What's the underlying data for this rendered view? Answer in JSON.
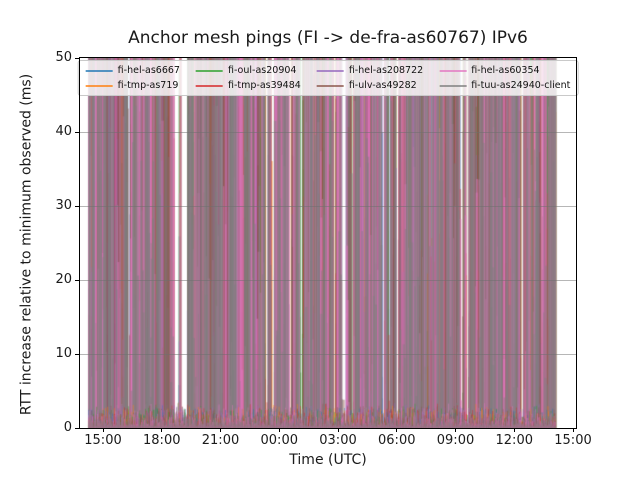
{
  "chart_data": {
    "type": "line",
    "title": "Anchor mesh pings (FI -> de-fra-as60767) IPv6",
    "xlabel": "Time (UTC)",
    "ylabel": "RTT increase relative to minimum observed (ms)",
    "ylim": [
      0,
      50
    ],
    "x_tick_labels": [
      "15:00",
      "18:00",
      "21:00",
      "00:00",
      "03:00",
      "06:00",
      "09:00",
      "12:00",
      "15:00"
    ],
    "x_tick_interval_hours": 3,
    "y_tick_labels": [
      "0",
      "10",
      "20",
      "30",
      "40",
      "50"
    ],
    "grid": "horizontal-gridlines-on",
    "legend_position": "upper center, 4 columns, 2 rows",
    "series": [
      {
        "name": "fi-hel-as6667",
        "color": "#1f77b4"
      },
      {
        "name": "fi-tmp-as719",
        "color": "#ff7f0e"
      },
      {
        "name": "fi-oul-as20904",
        "color": "#2ca02c"
      },
      {
        "name": "fi-tmp-as39484",
        "color": "#d62728"
      },
      {
        "name": "fi-hel-as208722",
        "color": "#9467bd"
      },
      {
        "name": "fi-ulv-as49282",
        "color": "#8c564b"
      },
      {
        "name": "fi-hel-as60354",
        "color": "#e377c2"
      },
      {
        "name": "fi-tuu-as24940-client",
        "color": "#7f7f7f"
      }
    ],
    "values_note": "Dense noisy RTT time series spanning ~24 h (approx 14:00 UTC to 14:00 UTC next day). Baseline sits at 0-3 ms for all eight probes, with near-continuous spikes that exceed the 50 ms axis limit, rendering as a solid multicolored wall of semi-transparent vertical lines.",
    "render": {
      "seed": 1337,
      "spikes_per_series": 560,
      "full_height_probability": 0.58,
      "line_alpha": 0.45,
      "baseline_max_ms": 3.2,
      "gap_slivers": 22,
      "data_x_fraction_start": 0.016,
      "data_x_fraction_end": 0.957
    }
  }
}
